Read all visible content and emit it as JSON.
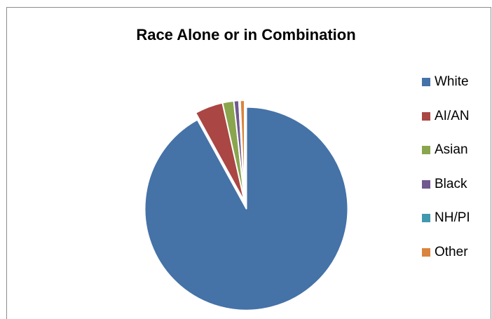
{
  "chart_data": {
    "type": "pie",
    "title": "Race Alone or in Combination",
    "categories": [
      "White",
      "AI/AN",
      "Asian",
      "Black",
      "NH/PI",
      "Other"
    ],
    "values": [
      92.0,
      4.5,
      1.8,
      0.8,
      0.2,
      0.7
    ],
    "unit": "percent (estimated)",
    "colors": [
      "#4572A7",
      "#AA4643",
      "#89A54E",
      "#71588F",
      "#4198AF",
      "#DB843D"
    ],
    "exploded_slice": "White",
    "legend_position": "right",
    "start_angle": "12 o'clock, clockwise"
  }
}
